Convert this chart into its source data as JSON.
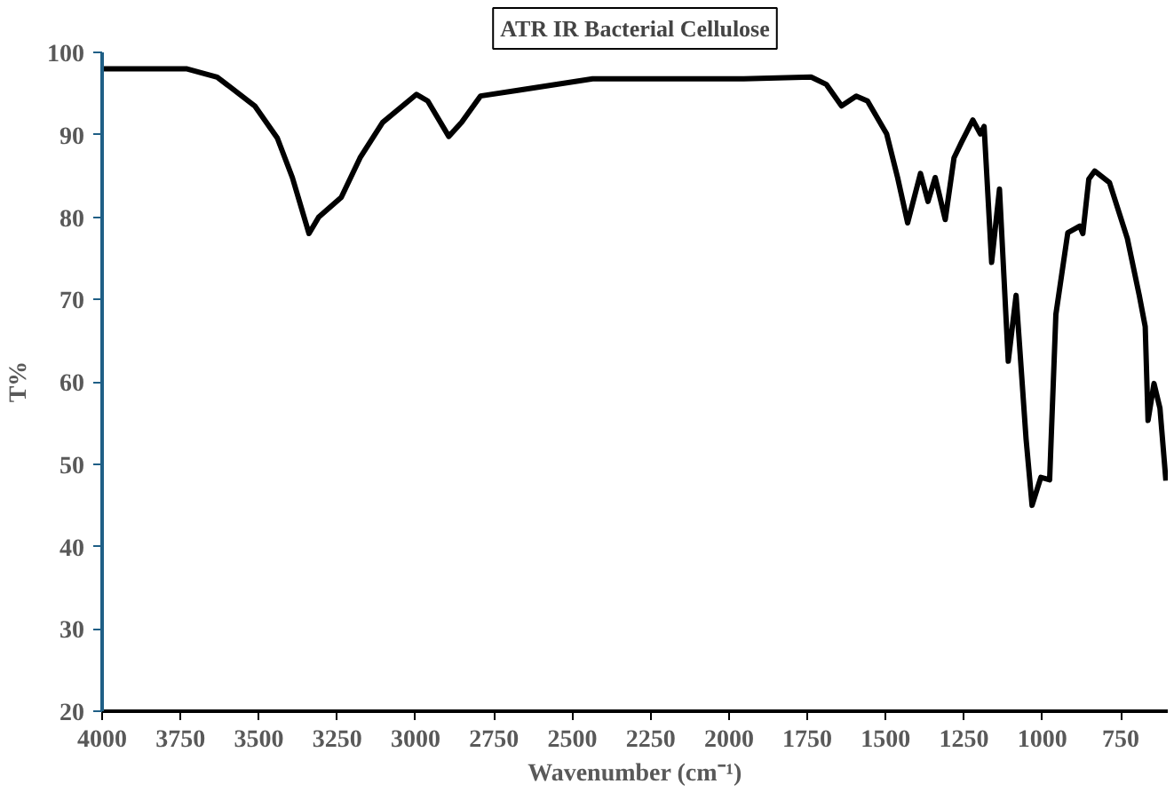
{
  "chart_data": {
    "type": "line",
    "title": "ATR IR Bacterial Cellulose",
    "xlabel": "Wavenumber (cm⁻¹)",
    "ylabel": "T%",
    "xlim": [
      4000,
      600
    ],
    "xticks": [
      4000,
      3750,
      3500,
      3250,
      3000,
      2750,
      2500,
      2250,
      2000,
      1750,
      1500,
      1250,
      1000,
      750
    ],
    "ylim": [
      20,
      100
    ],
    "yticks": [
      20,
      30,
      40,
      50,
      60,
      70,
      80,
      90,
      100
    ],
    "grid": false,
    "marker": "none",
    "line_style": "solid",
    "series": [
      {
        "color": "#000000",
        "x": [
          4000,
          3729,
          3633,
          3513,
          3441,
          3393,
          3340,
          3309,
          3237,
          3177,
          3105,
          2997,
          2961,
          2894,
          2853,
          2793,
          2674,
          2435,
          1953,
          1738,
          1689,
          1641,
          1594,
          1558,
          1497,
          1462,
          1430,
          1389,
          1365,
          1342,
          1310,
          1282,
          1258,
          1222,
          1198,
          1186,
          1162,
          1137,
          1109,
          1084,
          1052,
          1033,
          1005,
          977,
          957,
          919,
          881,
          871,
          852,
          833,
          786,
          729,
          691,
          672,
          663,
          644,
          625,
          606
        ],
        "values": [
          98.0,
          98.0,
          97.0,
          93.5,
          89.6,
          84.8,
          78.0,
          80.0,
          82.4,
          87.2,
          91.5,
          94.9,
          94.1,
          89.8,
          91.5,
          94.7,
          95.4,
          96.8,
          96.8,
          97.0,
          96.1,
          93.5,
          94.7,
          94.1,
          90.1,
          84.8,
          79.3,
          85.3,
          81.9,
          84.8,
          79.7,
          87.2,
          89.1,
          91.8,
          90.1,
          91.0,
          74.5,
          83.4,
          62.5,
          70.5,
          53.0,
          45.0,
          48.4,
          48.1,
          68.2,
          78.1,
          78.9,
          78.0,
          84.6,
          85.6,
          84.2,
          77.4,
          70.5,
          66.7,
          55.3,
          59.8,
          56.8,
          48.0
        ]
      }
    ]
  }
}
